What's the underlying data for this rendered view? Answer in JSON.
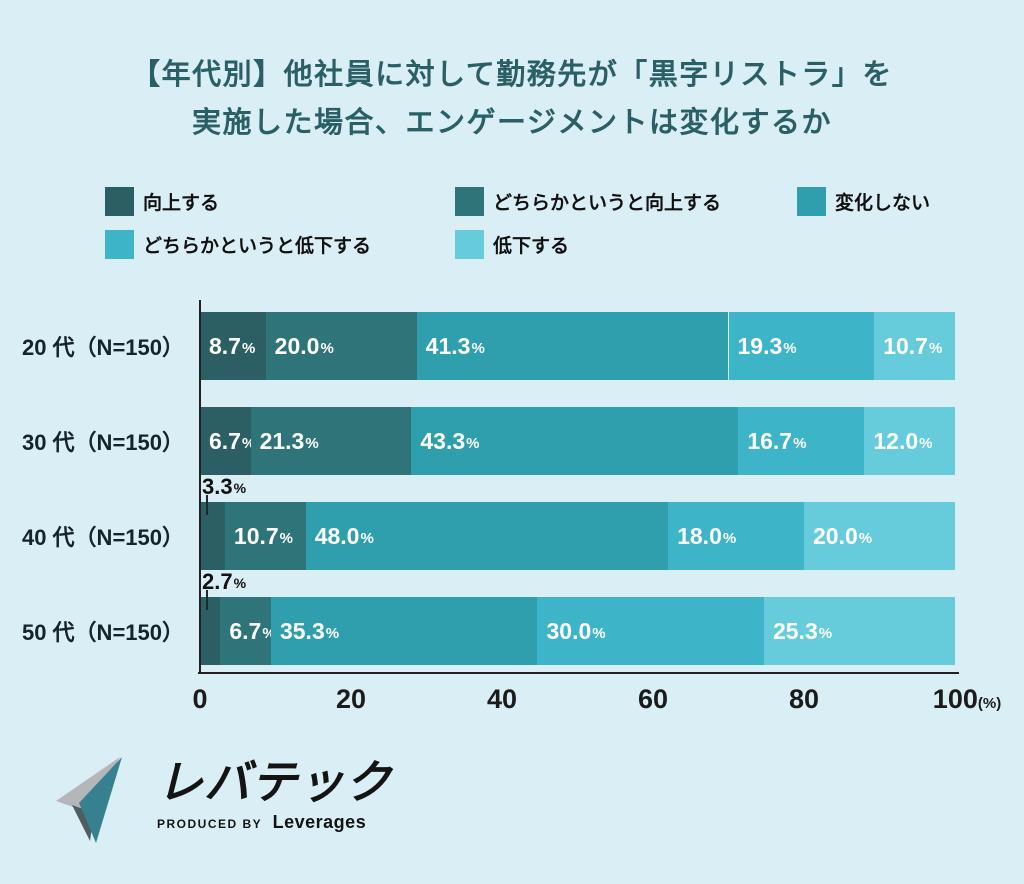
{
  "title": {
    "line1": "【年代別】他社員に対して勤務先が「黒字リストラ」を",
    "line2": "実施した場合、エンゲージメントは変化するか"
  },
  "colors": {
    "background": "#daeef5",
    "title_text": "#2b5f66",
    "axis": "#222222",
    "bar_label_inside": "#ffffff",
    "bar_label_outside": "#111111"
  },
  "chart_data": {
    "type": "bar",
    "subtype": "horizontal-stacked-percent",
    "categories": [
      "20 代（N=150）",
      "30 代（N=150）",
      "40 代（N=150）",
      "50 代（N=150）"
    ],
    "series": [
      {
        "name": "向上する",
        "color": "#2b5f63",
        "values": [
          8.7,
          6.7,
          3.3,
          2.7
        ]
      },
      {
        "name": "どちらかというと向上する",
        "color": "#2e7478",
        "values": [
          20.0,
          21.3,
          10.7,
          6.7
        ]
      },
      {
        "name": "変化しない",
        "color": "#2f9fae",
        "values": [
          41.3,
          43.3,
          48.0,
          35.3
        ]
      },
      {
        "name": "どちらかというと低下する",
        "color": "#3eb4c8",
        "values": [
          19.3,
          16.7,
          18.0,
          30.0
        ]
      },
      {
        "name": "低下する",
        "color": "#66cbda",
        "values": [
          10.7,
          12.0,
          20.0,
          25.3
        ]
      }
    ],
    "x_ticks": [
      0,
      20,
      40,
      60,
      80,
      100
    ],
    "x_unit": "(%)",
    "xlim": [
      0,
      100
    ],
    "legend_position": "top",
    "grid": false,
    "value_suffix": "%"
  },
  "logo": {
    "name": "レバテック",
    "produced_by": "PRODUCED BY",
    "company": "Leverages",
    "mark_teal": "#37808f",
    "mark_gray": "#b3b7b9",
    "mark_dark": "#4d5d60"
  }
}
